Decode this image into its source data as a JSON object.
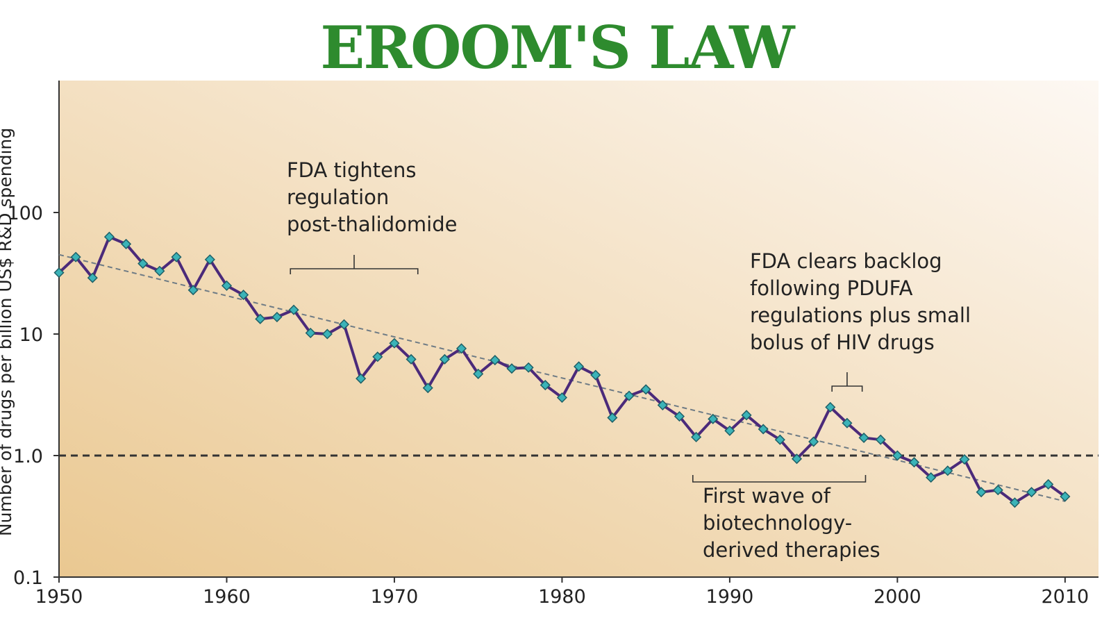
{
  "chart_data": {
    "type": "line",
    "title": "EROOM'S LAW",
    "ylabel": "Number of drugs per billion US$ R&D spending",
    "xlabel": "",
    "yscale": "log",
    "ylim": [
      0.1,
      1000
    ],
    "xlim": [
      1950,
      2011
    ],
    "xticks": [
      1950,
      1960,
      1970,
      1980,
      1990,
      2000,
      2010
    ],
    "xtick_labels": [
      "1950",
      "1960",
      "1970",
      "1980",
      "1990",
      "2000",
      "2010"
    ],
    "yticks": [
      0.1,
      1,
      10,
      100
    ],
    "ytick_labels": [
      "0.1",
      "1.0",
      "10",
      "100"
    ],
    "reference_line": {
      "y": 1.0,
      "style": "dashed"
    },
    "trend_line": {
      "x": [
        1950,
        2010
      ],
      "y": [
        45,
        0.42
      ],
      "style": "dashed"
    },
    "colors": {
      "line": "#4b2a7a",
      "marker": "#3bb3b8",
      "marker_edge": "#1f5f66",
      "trend": "#6e7b85",
      "reference": "#333333",
      "bg_left": "#eac891",
      "bg_right": "#fdf8f3",
      "title": "#2e8b2e"
    },
    "series": [
      {
        "name": "Drugs per billion US$ R&D",
        "x": [
          1950,
          1951,
          1952,
          1953,
          1954,
          1955,
          1956,
          1957,
          1958,
          1959,
          1960,
          1961,
          1962,
          1963,
          1964,
          1965,
          1966,
          1967,
          1968,
          1969,
          1970,
          1971,
          1972,
          1973,
          1974,
          1975,
          1976,
          1977,
          1978,
          1979,
          1980,
          1981,
          1982,
          1983,
          1984,
          1985,
          1986,
          1987,
          1988,
          1989,
          1990,
          1991,
          1992,
          1993,
          1994,
          1995,
          1996,
          1997,
          1998,
          1999,
          2000,
          2001,
          2002,
          2003,
          2004,
          2005,
          2006,
          2007,
          2008,
          2009,
          2010
        ],
        "y": [
          32,
          43,
          29,
          63,
          55,
          38,
          33,
          43,
          23,
          41,
          25,
          21,
          13.3,
          13.8,
          15.8,
          10.2,
          10,
          12,
          4.3,
          6.5,
          8.4,
          6.2,
          3.6,
          6.2,
          7.6,
          4.7,
          6.1,
          5.2,
          5.3,
          3.8,
          3,
          5.4,
          4.6,
          2.05,
          3.1,
          3.5,
          2.6,
          2.1,
          1.42,
          2,
          1.6,
          2.15,
          1.65,
          1.35,
          0.94,
          1.3,
          2.5,
          1.85,
          1.4,
          1.35,
          1.0,
          0.88,
          0.66,
          0.75,
          0.93,
          0.5,
          0.52,
          0.41,
          0.5,
          0.58,
          0.46
        ]
      }
    ],
    "annotations": [
      {
        "lines": [
          "FDA tightens",
          "regulation",
          "post-thalidomide"
        ],
        "x_range": [
          1963.8,
          1971.4
        ]
      },
      {
        "lines": [
          "FDA clears backlog",
          "following PDUFA",
          "regulations plus small",
          "bolus of HIV drugs"
        ],
        "x_range": [
          1996.1,
          1997.9
        ]
      },
      {
        "lines": [
          "First wave of",
          "biotechnology-",
          "derived therapies"
        ],
        "x_range": [
          1987.8,
          1998.1
        ]
      }
    ]
  }
}
